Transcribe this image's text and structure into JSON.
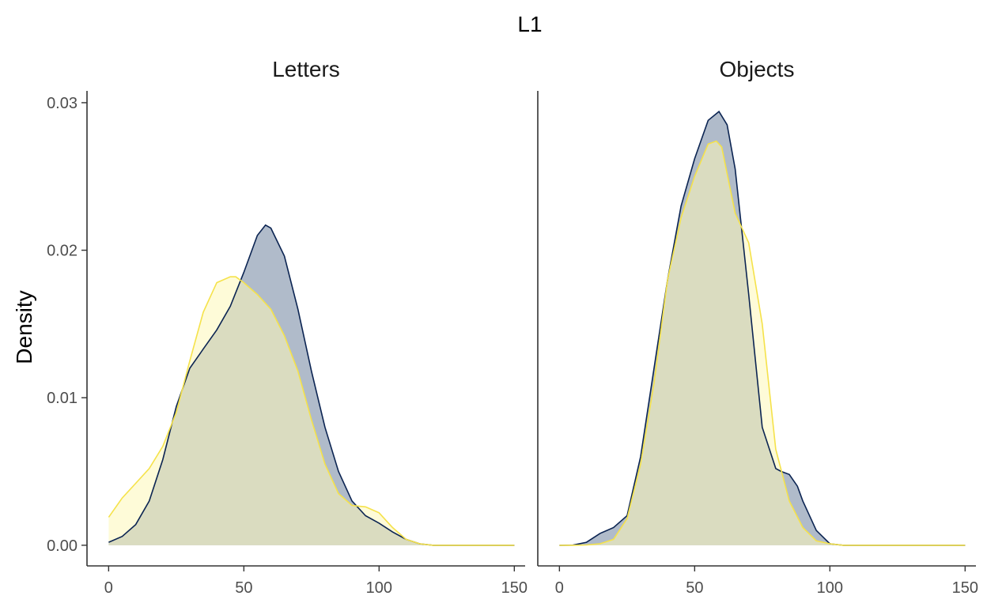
{
  "chart_data": {
    "type": "area",
    "title": "L1",
    "ylabel": "Density",
    "xlabel": "",
    "xlim": [
      -8,
      154
    ],
    "ylim": [
      -0.0014,
      0.0308
    ],
    "x_ticks": [
      0,
      50,
      100,
      150
    ],
    "y_ticks": [
      0.0,
      0.01,
      0.02,
      0.03
    ],
    "y_tick_labels": [
      "0.00",
      "0.01",
      "0.02",
      "0.03"
    ],
    "grid": false,
    "colors": {
      "navy_line": "#0b2452",
      "navy_fill": "#8696ad",
      "yellow_line": "#f5e24a",
      "yellow_fill": "#fdf8b8"
    },
    "panels": [
      {
        "label": "Letters",
        "series": [
          {
            "color": "#0b2452",
            "x": [
              0,
              5,
              10,
              15,
              20,
              25,
              30,
              35,
              40,
              45,
              50,
              55,
              58,
              60,
              65,
              70,
              75,
              80,
              85,
              90,
              95,
              100,
              105,
              110,
              115,
              120,
              125,
              130,
              135,
              140,
              145,
              150
            ],
            "y": [
              0.0002,
              0.0006,
              0.0014,
              0.003,
              0.0058,
              0.0094,
              0.012,
              0.0133,
              0.0146,
              0.0162,
              0.0185,
              0.021,
              0.0217,
              0.0215,
              0.0196,
              0.016,
              0.0118,
              0.008,
              0.005,
              0.003,
              0.002,
              0.0015,
              0.0009,
              0.0004,
              0.0001,
              0,
              0,
              0,
              0,
              0,
              0,
              0
            ]
          },
          {
            "color": "#f5e24a",
            "x": [
              0,
              5,
              10,
              15,
              20,
              25,
              30,
              35,
              40,
              45,
              47,
              50,
              55,
              60,
              65,
              70,
              75,
              80,
              85,
              90,
              95,
              100,
              105,
              110,
              115,
              120,
              125,
              130,
              135,
              140,
              145,
              150
            ],
            "y": [
              0.0019,
              0.0032,
              0.0042,
              0.0052,
              0.0067,
              0.009,
              0.0125,
              0.0158,
              0.0178,
              0.0182,
              0.0182,
              0.0178,
              0.017,
              0.016,
              0.0142,
              0.0118,
              0.0085,
              0.0055,
              0.0035,
              0.0027,
              0.0026,
              0.0022,
              0.0012,
              0.0004,
              0.0001,
              0,
              0,
              0,
              0,
              0,
              0,
              0
            ]
          }
        ]
      },
      {
        "label": "Objects",
        "series": [
          {
            "color": "#0b2452",
            "x": [
              0,
              5,
              10,
              15,
              20,
              25,
              30,
              35,
              40,
              45,
              50,
              55,
              59,
              62,
              65,
              70,
              75,
              80,
              82,
              85,
              88,
              90,
              95,
              100,
              105,
              110,
              115,
              120,
              125,
              130,
              135,
              140,
              145,
              150
            ],
            "y": [
              0,
              1e-05,
              0.0002,
              0.0008,
              0.0012,
              0.002,
              0.006,
              0.012,
              0.018,
              0.023,
              0.0262,
              0.0288,
              0.0294,
              0.0285,
              0.0255,
              0.017,
              0.008,
              0.0052,
              0.005,
              0.0048,
              0.004,
              0.003,
              0.001,
              0.0001,
              0,
              0,
              0,
              0,
              0,
              0,
              0,
              0,
              0,
              0
            ]
          },
          {
            "color": "#f5e24a",
            "x": [
              0,
              5,
              10,
              15,
              20,
              25,
              30,
              35,
              40,
              45,
              50,
              55,
              58,
              60,
              65,
              70,
              75,
              80,
              85,
              90,
              95,
              100,
              105,
              110,
              115,
              120,
              125,
              130,
              135,
              140,
              145,
              150
            ],
            "y": [
              0,
              0,
              2e-05,
              0.0001,
              0.0004,
              0.0018,
              0.0055,
              0.011,
              0.018,
              0.0222,
              0.025,
              0.0272,
              0.0274,
              0.027,
              0.0225,
              0.0205,
              0.015,
              0.0065,
              0.003,
              0.0012,
              0.0003,
              0.0001,
              0,
              0,
              0,
              0,
              0,
              0,
              0,
              0,
              0,
              0
            ]
          }
        ]
      }
    ]
  }
}
